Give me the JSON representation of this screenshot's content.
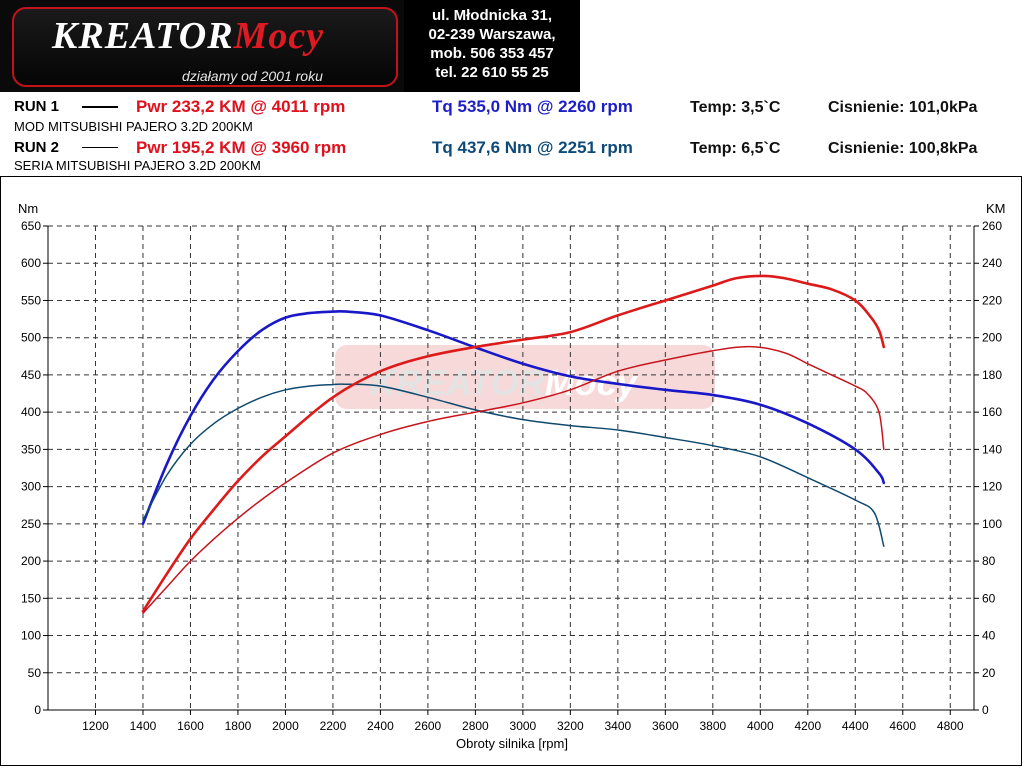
{
  "brand": {
    "name_a": "KREATOR",
    "name_b": "Mocy",
    "tagline": "działamy od 2001 roku",
    "contact": [
      "ul. Młodnicka 31,",
      "02-239  Warszawa,",
      "mob.  506 353 457",
      "tel.  22 610 55 25"
    ]
  },
  "runs": [
    {
      "label": "RUN 1",
      "pwr": "Pwr  233,2 KM @ 4011 rpm",
      "tq": "Tq 535,0 Nm @ 2260 rpm",
      "temp": "Temp: 3,5`C",
      "pressure": "Cisnienie: 101,0kPa",
      "desc": "MOD MITSUBISHI PAJERO 3.2D 200KM"
    },
    {
      "label": "RUN 2",
      "pwr": "Pwr  195,2 KM @ 3960 rpm",
      "tq": "Tq 437,6 Nm @ 2251 rpm",
      "temp": "Temp: 6,5`C",
      "pressure": "Cisnienie: 100,8kPa",
      "desc": "SERIA MITSUBISHI PAJERO 3.2D 200KM"
    }
  ],
  "colors": {
    "run1_pwr": "#dd1a1a",
    "run2_pwr": "#c8141c",
    "run1_tq": "#1818c8",
    "run2_tq": "#0f4a6e",
    "grid": "#333333"
  },
  "chart_data": {
    "type": "line",
    "xlabel": "Obroty silnika [rpm]",
    "ylabel_left": "Nm",
    "ylabel_right": "KM",
    "xlim": [
      1000,
      4900
    ],
    "ylim_left": [
      0,
      650
    ],
    "ylim_right": [
      0,
      260
    ],
    "x_ticks": [
      1200,
      1400,
      1600,
      1800,
      2000,
      2200,
      2400,
      2600,
      2800,
      3000,
      3200,
      3400,
      3600,
      3800,
      4000,
      4200,
      4400,
      4600,
      4800
    ],
    "y_ticks_left": [
      0,
      50,
      100,
      150,
      200,
      250,
      300,
      350,
      400,
      450,
      500,
      550,
      600,
      650
    ],
    "y_ticks_right": [
      0,
      20,
      40,
      60,
      80,
      100,
      120,
      140,
      160,
      180,
      200,
      220,
      240,
      260
    ],
    "grid": true,
    "series": [
      {
        "name": "RUN 1 Tq",
        "axis": "left",
        "x": [
          1400,
          1500,
          1600,
          1700,
          1800,
          1900,
          2000,
          2100,
          2200,
          2260,
          2400,
          2600,
          2800,
          3000,
          3200,
          3400,
          3600,
          3800,
          4000,
          4200,
          4400,
          4500,
          4520
        ],
        "y": [
          250,
          330,
          395,
          445,
          482,
          510,
          527,
          533,
          535,
          535,
          530,
          510,
          487,
          465,
          448,
          438,
          430,
          423,
          410,
          385,
          350,
          318,
          305
        ]
      },
      {
        "name": "RUN 2 Tq",
        "axis": "left",
        "x": [
          1400,
          1500,
          1600,
          1700,
          1800,
          1900,
          2000,
          2100,
          2200,
          2251,
          2400,
          2600,
          2800,
          3000,
          3200,
          3400,
          3600,
          3800,
          4000,
          4200,
          4400,
          4480,
          4520
        ],
        "y": [
          255,
          315,
          357,
          385,
          405,
          420,
          430,
          435,
          437,
          437.6,
          435,
          420,
          403,
          390,
          382,
          376,
          366,
          355,
          340,
          312,
          282,
          265,
          220
        ]
      },
      {
        "name": "RUN 1 Pwr",
        "axis": "right",
        "x": [
          1400,
          1500,
          1600,
          1700,
          1800,
          1900,
          2000,
          2200,
          2400,
          2600,
          2800,
          3000,
          3200,
          3400,
          3600,
          3800,
          3900,
          4011,
          4100,
          4200,
          4300,
          4400,
          4460,
          4500,
          4520
        ],
        "y": [
          53,
          73,
          92,
          108,
          123,
          136,
          147,
          168,
          182,
          190,
          195,
          199,
          203,
          212,
          220,
          228,
          232,
          233.2,
          232,
          229,
          226,
          220,
          212,
          204,
          195
        ]
      },
      {
        "name": "RUN 2 Pwr",
        "axis": "right",
        "x": [
          1400,
          1500,
          1600,
          1700,
          1800,
          1900,
          2000,
          2200,
          2400,
          2600,
          2800,
          3000,
          3200,
          3400,
          3600,
          3800,
          3960,
          4100,
          4200,
          4300,
          4400,
          4450,
          4500,
          4520
        ],
        "y": [
          52,
          66,
          80,
          92,
          103,
          113,
          122,
          138,
          148,
          155,
          160,
          165,
          172,
          182,
          188,
          193,
          195.2,
          192,
          186,
          180,
          174,
          170,
          160,
          140
        ]
      }
    ]
  }
}
